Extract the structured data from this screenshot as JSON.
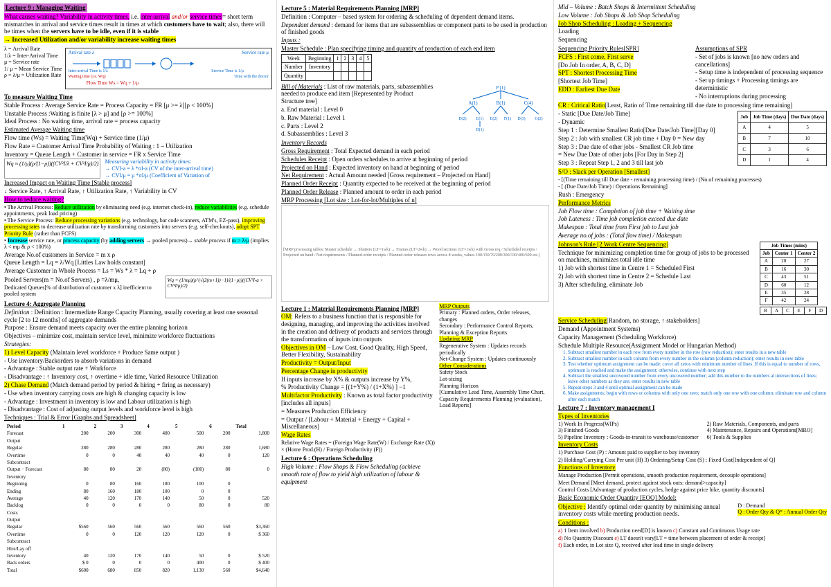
{
  "col1": {
    "lec9_title": "Lecture 9 : Managing Waiting",
    "causes_waiting": "What causes waiting? Variability in activity times,",
    "causes_waiting2": " i.e. ",
    "inter_arrival": "inter-arrival",
    "andor": " and/or ",
    "service_times": "service times",
    "short_term": "= short term mismatches in arrival and service times result in times at which ",
    "customers_wait": "customers have to wait",
    "also_idle": "; also, there will be times when the ",
    "servers_idle": "servers have to be idle, even if it is stable",
    "arrow_util": "→ Increased Utilization and/or variability increase waiting times",
    "lambda_label": "λ = Arrival Rate",
    "inv_lambda": "1/λ = Inter-Arrival Time",
    "mu_label": "μ = Service rate",
    "inv_mu": "1/ μ = Mean Service Time",
    "rho": "ρ = λ/μ = Utilization Rate",
    "diagram": {
      "arrival_rate": "Arrival rate λ",
      "service_rate": "Service rate μ",
      "inter_arrival_time": "Inter-arrival Time is 1/λ",
      "service_time": "Service Time is 1/μ",
      "waiting_time": "Waiting time (i.e. Wq)",
      "time_doctor": "Time with the doctor",
      "flow_time": "Flow Time Ws = Wq + 1/μ"
    },
    "measure_title": "To measure Waiting Time",
    "stable_process": "Stable Process : Average Service Rate = Process Capacity = FR [μ >= λ][ρ < 100%]",
    "unstable": "Unstable Process :Waiting is finite [λ > μ] and [ρ >= 100%]",
    "ideal": "Ideal Process : No waiting time, arrival rate = process capacity",
    "est_avg_title": "Estimated Average Waiting time",
    "flow_time_eq": "Flow time (Ws) = Waiting Time(Wq) + Service time (1/μ)",
    "flow_rate_eq": "Flow Rate = Customer Arrival Time      Probability of Waiting : 1 – Utilization",
    "inventory_eq": "Inventory = Queue Length + Customer in service = FR x Service Time",
    "measuring_var": "Measuring variability in activity times:",
    "cv_ia": "→ CVI-a = λ *σI-a (CV of the inter-arrival time)",
    "cv_s": "→ CVI/μ = μ *σI/μ (Coefficient of Variation of",
    "wq_formula": "Wq ≈ (1/μ)(ρ/(1−ρ))((CV²I/λ + CV²I/μ)/2)",
    "increased_impact": "Increased Impact on Waiting Time [Stable process]",
    "service_rate_up": "↓ Service Rate, ↑ Arrival Rate, ↑ Utilization Rate, ↑ Variability in CV",
    "how_reduce": "How to reduce waiting?",
    "arrival_process": "The Arrival Process: ",
    "reduce_util": "Reduce utilization",
    "by_elim": " by eliminating need (e.g. internet check-in), ",
    "reduce_var": "reduce variabilities",
    "eg_schedule": " (e.g. schedule appointments, peak load pricing)",
    "service_process": "The Service Process: ",
    "reduce_proc_var": "Reduce processing variations",
    "eg_tech": " (e.g. technology, bar code scanners, ATM's, EZ-pass), ",
    "improve_proc": "improving processing rates",
    "to_decrease": " to decrease utilization rate by transforming customers into servers (e.g. self-checkouts), ",
    "adopt_spt": "adopt SPT Priority Rule",
    "rather_fcfs": " (rather than FCFS)",
    "increase_bullet": "Increase",
    "service_or_cap": " service rate, or ",
    "process_cap": "process capacity",
    "by_adding": " (by ",
    "adding_servers": "adding servers",
    "pooled_arr": " → pooled process)→ ",
    "stable_proc_it": "stable process",
    "if_m": " if ",
    "m_gt": "m > λ/μ",
    "implies": " (implies λ < mμ & ρ < 100%)",
    "avg_cust": "Average No.of customers in Service = m x ρ",
    "queue_len": "Queue Length = Lq = λ/Wq [Littles Law holds constant]",
    "avg_cust_whole": "Average Customer in Whole Process = Ls = Ws * λ = Lq + ρ",
    "pooled_servers": "Pooled Servers(m = No.of Servers) , ρ =λ/mμ,",
    "dedicated": "Dedicated Queues[% of distribution of customer x λ] inefficient to pooled system",
    "wq_pooled": "Wq = (1/mμ)(ρ^(√(2(m+1))−1)/(1−ρ))((CV²I-a + CV²I/μ)/2)",
    "lec4_title": "Lecture 4: Aggregate Planning",
    "lec4_def": "Definition : Intermediate Range Capacity Planning, usually covering at least one seasonal cycle [2 to 12 months] of aggregate demands",
    "lec4_purpose": "Purpose : Ensure demand meets capacity over the entire planning horizon",
    "lec4_obj": "Objectives – minimize cost, maintain service level, minimize workforce fluctuations",
    "strategies": "Strategies:",
    "level_cap": "1) Level Capacity",
    "level_cap_desc": " (Maintain level workforce + Produce Same output )",
    "level_use": "- Use inventory/Backorders to absorb variations in demand",
    "level_adv": "- Advantage : Stable output rate + Workforce",
    "level_dis": "- Disadvantage : ↑ Inventory cost, ↑ overtime + idle time, Varied Resource Utilization",
    "chase_demand": "2) Chase Demand",
    "chase_desc": " (Match demand period by period & hiring + firing as necessary)",
    "chase_use": "- Use when inventory carrying costs are high & changing capacity is low",
    "chase_adv": "- Advantage : Investment in inventory is low  and Labour utilization is high",
    "chase_dis": "- Disadvantage : Cost of adjusting output levels and workforce level is high",
    "techniques": "Techniques : Trial & Error [Graphs and Spreadsheet]",
    "agg_table": {
      "headers": [
        "Period",
        "1",
        "2",
        "3",
        "4",
        "5",
        "6",
        "Total"
      ],
      "rows": [
        [
          "Forecast",
          "200",
          "200",
          "300",
          "400",
          "500",
          "200",
          "1,800"
        ],
        [
          "Output",
          "",
          "",
          "",
          "",
          "",
          "",
          ""
        ],
        [
          "  Regular",
          "280",
          "280",
          "280",
          "280",
          "280",
          "280",
          "1,680"
        ],
        [
          "  Overtime",
          "0",
          "0",
          "40",
          "40",
          "40",
          "0",
          "120"
        ],
        [
          "  Subcontract",
          "",
          "",
          "",
          "",
          "",
          "",
          ""
        ],
        [
          "Output − Forecast",
          "80",
          "80",
          "20",
          "(80)",
          "(180)",
          "80",
          "0"
        ],
        [
          "Inventory",
          "",
          "",
          "",
          "",
          "",
          "",
          ""
        ],
        [
          "  Beginning",
          "0",
          "80",
          "160",
          "180",
          "100",
          "0",
          ""
        ],
        [
          "  Ending",
          "80",
          "160",
          "180",
          "100",
          "0",
          "0",
          ""
        ],
        [
          "  Average",
          "40",
          "120",
          "170",
          "140",
          "50",
          "0",
          "520"
        ],
        [
          "Backlog",
          "0",
          "0",
          "0",
          "0",
          "80",
          "0",
          "80"
        ],
        [
          "Costs",
          "",
          "",
          "",
          "",
          "",
          "",
          ""
        ],
        [
          "  Output",
          "",
          "",
          "",
          "",
          "",
          "",
          ""
        ],
        [
          "    Regular",
          "$560",
          "560",
          "560",
          "560",
          "560",
          "560",
          "$3,360"
        ],
        [
          "    Overtime",
          "0",
          "0",
          "120",
          "120",
          "120",
          "0",
          "$ 360"
        ],
        [
          "    Subcontract",
          "",
          "",
          "",
          "",
          "",
          "",
          ""
        ],
        [
          "  Hire/Lay off",
          "",
          "",
          "",
          "",
          "",
          "",
          ""
        ],
        [
          "  Inventory",
          "40",
          "120",
          "170",
          "140",
          "50",
          "0",
          "$ 520"
        ],
        [
          "  Back orders",
          "$ 0",
          "0",
          "0",
          "0",
          "400",
          "0",
          "$ 400"
        ],
        [
          "    Total",
          "$600",
          "680",
          "850",
          "820",
          "1,130",
          "560",
          "$4,640"
        ]
      ]
    }
  },
  "col2": {
    "lec5_title": "Lecture 5 : Material Requirements Planning [MRP]",
    "lec5_def": "Definition : Computer – based system for ordering & scheduling of dependent demand items.",
    "dep_demand": "Dependant demand : demand for items that are subassemblies or component parts to be used in production of finished goods",
    "inputs": "Inputs :",
    "master_sched": "Master Schedule : Plan specifying timing and quantity of production of each end item",
    "ms_table": {
      "r1": [
        "Week",
        "Beginning",
        "1",
        "2",
        "3",
        "4",
        "5"
      ],
      "r2": [
        "Number",
        "Inventory",
        "",
        "",
        "",
        "",
        ""
      ],
      "r3": [
        "Quantity",
        "",
        "",
        "",
        "",
        "",
        ""
      ]
    },
    "bom": "Bill of Materials : List of raw materials, parts, subassemblies needed to produce end item [Represented by Product Structure tree]",
    "bom_a": "a.    End material : Level 0",
    "bom_b": "b.    Raw Material : Level 1",
    "bom_c": "c.    Parts : Level 2",
    "bom_d": "d.    Subassemblies : Level 3",
    "tree": {
      "p1": "P (1)",
      "a1": "A (1)",
      "b1": "B (1)",
      "c4": "C (4)",
      "d2": "D (2)",
      "e1": "E (1)",
      "e2": "E (2)",
      "f1": "F (1)",
      "d3": "D (3)",
      "g2": "G (2)",
      "d1": "D (1)"
    },
    "inv_records": "Inventory Records",
    "gross_req": "Gross Requirement : Total Expected demand in each period",
    "sched_rec": "Schedules Receipt : Open orders schedules to arrive at beginning of period",
    "proj_hand": "Projected on Hand : Expected inventory on hand at beginning of period",
    "net_req": "Net Requirement : Actual Amount needed [Gross requirement – Projected on Hand]",
    "planned_rec": "Planned Order Receipt : Quantity expected to be received at the beginning of period",
    "planned_rel": "Planned Order Release : Planned amount to order in each period",
    "mrp_proc": "MRP Processing [Lot size : Lot-for-lot/Multiples of n]",
    "lec1_title": "Lecture 1 : Material Requirements Planning [MRP]",
    "om_def": "OM: Refers to a business function that is responsible for designing, managing, and improving the activities involved in the creation and delivery of products and services through the transformation of inputs into outputs",
    "obj_om": "Objectives in OM",
    "obj_om_desc": " – Low Cost, Good Quality, High Speed, Better Flexibility, Sustainability",
    "productivity": "Productivity = Output/Input",
    "pct_change": "Percentage Change in productivity",
    "pct_if": "If inputs increase by X% & outputs increase by Y%,",
    "pct_formula": "% Productivity Change = [(1+Y%) / (1+X%) ] −1",
    "multifactor": "Multifactor Productivity",
    "multifactor_desc": " : Known as total factor productivity [includes all inputs]",
    "measures": "= Measures Production Efficiency",
    "output_formula": "= Output / [Labour + Material + Energy + Capital + Miscellaneous]",
    "wage_rates": "Wage Rates",
    "wage_formula": "Relative Wage Rates = (Foreign Wage Rate(W) / Exchange Rate (X)) × (Home Prod.(H) / Foreign Productivity (F))",
    "lec6_title": "Lecture 6 : Operations Scheduling",
    "high_vol": "High Volume : Flow Shops & Flow Scheduling (achieve smooth rate of flow to yield high utilization of labour & equipment"
  },
  "col3": {
    "mid_vol": "Mid – Volume : Batch Shops & Intermittent Scheduling",
    "low_vol": "Low Volume : Job Shops & Job Shop Scheduling",
    "job_shop": "Job Shop Scheduling : Loading + Sequencing",
    "loading": "Loading",
    "sequencing": "Sequencing",
    "spr_title": "Sequencing Priority Rules[SPR]",
    "assumptions": "Assumptions of SPR",
    "fcfs": "FCFS : First come, First serve",
    "fcfs_assume": "- Set of jobs is known [no new orders and cancellations]",
    "do_job": "[Do Job In order, A, B, C, D]",
    "setup_ind": "- Setup time is independent of processing sequence",
    "spt": "SPT : Shortest Processing Time",
    "setup_det": "- Set up timings + Processing timings are deterministic",
    "shortest_job": "[Shortest Job Time]",
    "no_interrupt": "- No interruptions during processing",
    "edd": "EDD : Earliest Due Date",
    "cr": "CR : Critical Ratio",
    "cr_desc": "[Least, Ratio of Time remaining till due date to processing time remaining]",
    "static": "- Static [Due Date/Job Time]",
    "dynamic": "- Dynamic",
    "step1": "Step 1 : Determine Smallest Ratio[Due Date/Job Time][Day 0]",
    "step2": "Step 2 : Job with smallest CR job time + Day 0 = New day",
    "step3": "Step 3 : Due date of other jobs - Smallest CR Job time",
    "step3b": "= New Due Date of other jobs [For Day in Step 2]",
    "step3c": "Step 3 : Repeat Step 1, 2 and 3 till last job",
    "slack": "S/O : Slack per Operation [Smallest]",
    "slack_formula": "- [(Time remaining till Due date - remaining processing time) / (No.of remaining processes)",
    "slack_alt": "- [ (Due Date/Job Time) / Operations Remaining]",
    "rush": "Rush : Emergency",
    "perf_metrics": "Performance Metrics",
    "job_flow": "Job Flow time : Completion of job time + Waiting time",
    "job_lateness": "Job Lateness : Time job completion exceed due date",
    "makespan": "Makespan : Total time from First job to Last job",
    "avg_jobs": "Average no.of jobs : (Total flow time) / Makespan",
    "johnson": "Johnson's Rule [2 Work Centre Sequencing]",
    "johnson_desc": "Technique for minimizing completion time for group of jobs to be processed on machines, minimizes total idle time",
    "johnson1": "1) Job with shortest time in Centre 1 = Scheduled First",
    "johnson2": "2) Job with shortest time in Centre 2 = Schedule Last",
    "johnson3": "3) After scheduling, eliminate Job",
    "service_sched": "Service Scheduling",
    "service_sched_desc": "[Random, no storage, ↑ stakeholders]",
    "demand_appt": "Demand (Appointment Systems)",
    "cap_mgmt": "Capacity Management (Scheduling Workforce)",
    "sched_multi": "Schedule Multiple Resource(Assignment Model or Hungarian Method)",
    "hung1": "Subtract smallest number in each row from every number in the row (row reduction); enter results in a new table",
    "hung2": "Subtract smallest number in each column from every number in the column (column reduction); enter results in new table",
    "hung3": "Test whether optimum assignment can be made: cover all zeros with minimum number of lines. If this is equal to number of rows, optimum is reached and make the assignment; otherwise, continue with next step",
    "hung4": "Subtract the smallest uncovered number from every uncovered number; add this number to the numbers at intersections of lines; leave other numbers as they are; enter results in new table",
    "hung5": "Repeat steps 3 and 4 until optimal assignment can be made",
    "hung6": "Make assignments; begin with rows or columns with only one zero; match only one row with one column; eliminate row and column after each match",
    "lec7_title": "Lecture 7 : Inventory management I",
    "types_inv": "Types of Inventories",
    "wip": "1) Work In Progress(WIPs)",
    "raw_mat": "2) Raw Materials, Components, and parts",
    "finished": "3) Finished Goods",
    "mro": "4) Maintenance, Repairs and Operations[MRO]",
    "pipeline": "5) Pipeline Inventory : Goods-in-transit to warehouse/customer",
    "tools": "6) Tools & Supplies",
    "inv_costs": "Inventory Costs",
    "purchase": "1) Purchase Cost (P) : Amount paid to supplier to buy inventory",
    "holding": "2) Holding/Carrying Cost Per unit (H)   3) Ordering/Setup Cost (S) : Fixed Cost[Independent of Q]",
    "functions": "Functions of Inventory",
    "manage_prod": "Manage Production [Permit operations, smooth production requirement, decouple operations]",
    "meet_demand": "Meet Demand [Meet demand, protect against stock outs: demand>capacity]",
    "control_costs": "Control Costs [Advantage of production cycles, hedge against price hike, quantity discounts]",
    "eoq_title": "Basic Economic Order Quantity [EOQ] Model:",
    "objective": "Objective :",
    "obj_desc": " Identify optimal order quantity by minimising annual inventory costs while meeting production needs.",
    "d_demand": "D : Demand",
    "q_order": "Q : Order Qty  & Q* : Annual Order Qty",
    "conditions": "Conditions :",
    "cond_a": "a)",
    "cond_a_txt": " 1 Item involved  ",
    "cond_b": "b)",
    "cond_b_txt": " Production need[D] is known  ",
    "cond_c": "c)",
    "cond_c_txt": " Constant and Continuous Usage rate",
    "cond_d": "d)",
    "cond_d_txt": " No Quantity Discount  ",
    "cond_e": "e)",
    "cond_e_txt": " LT doesn't vary[LT = time between placement of order & receipt]",
    "cond_f": "f)",
    "cond_f_txt": " Each order, in Lot size Q, received after lead time in single delivery",
    "job_table": {
      "headers": [
        "Job",
        "Job Time (days)",
        "Due Date (days)"
      ],
      "rows": [
        [
          "A",
          "4",
          "5"
        ],
        [
          "B",
          "7",
          "10"
        ],
        [
          "C",
          "3",
          "6"
        ],
        [
          "D",
          "1",
          "4"
        ]
      ]
    },
    "job_times_table": {
      "headers": [
        "Job",
        "Center 1",
        "Center 2"
      ],
      "title": "Job Times (mins)",
      "rows": [
        [
          "A",
          "20",
          "27"
        ],
        [
          "B",
          "16",
          "30"
        ],
        [
          "C",
          "43",
          "51"
        ],
        [
          "D",
          "60",
          "12"
        ],
        [
          "E",
          "35",
          "28"
        ],
        [
          "F",
          "42",
          "24"
        ]
      ]
    },
    "sequence": [
      "B",
      "A",
      "C",
      "E",
      "F",
      "D"
    ],
    "mrp_outputs_title": "MRP Outputs",
    "primary": "Primary : Planned orders, Order releases, changes",
    "secondary": "Secondary : Performance Control Reports, Planning & Exception Reports",
    "updating": "Updating MRP",
    "regen": "Regenerative System : Updates records periodically",
    "netchange": "Net-Change System : Updates continuously",
    "other_cons": "Other Considerations",
    "other_list": "Safety Stock\nLot-sizing\nPlanning Horizon\n[Cumulative Lead Time, Assembly Time Chart, Capacity Requirements Planning (evaluation), Load Reports]"
  }
}
